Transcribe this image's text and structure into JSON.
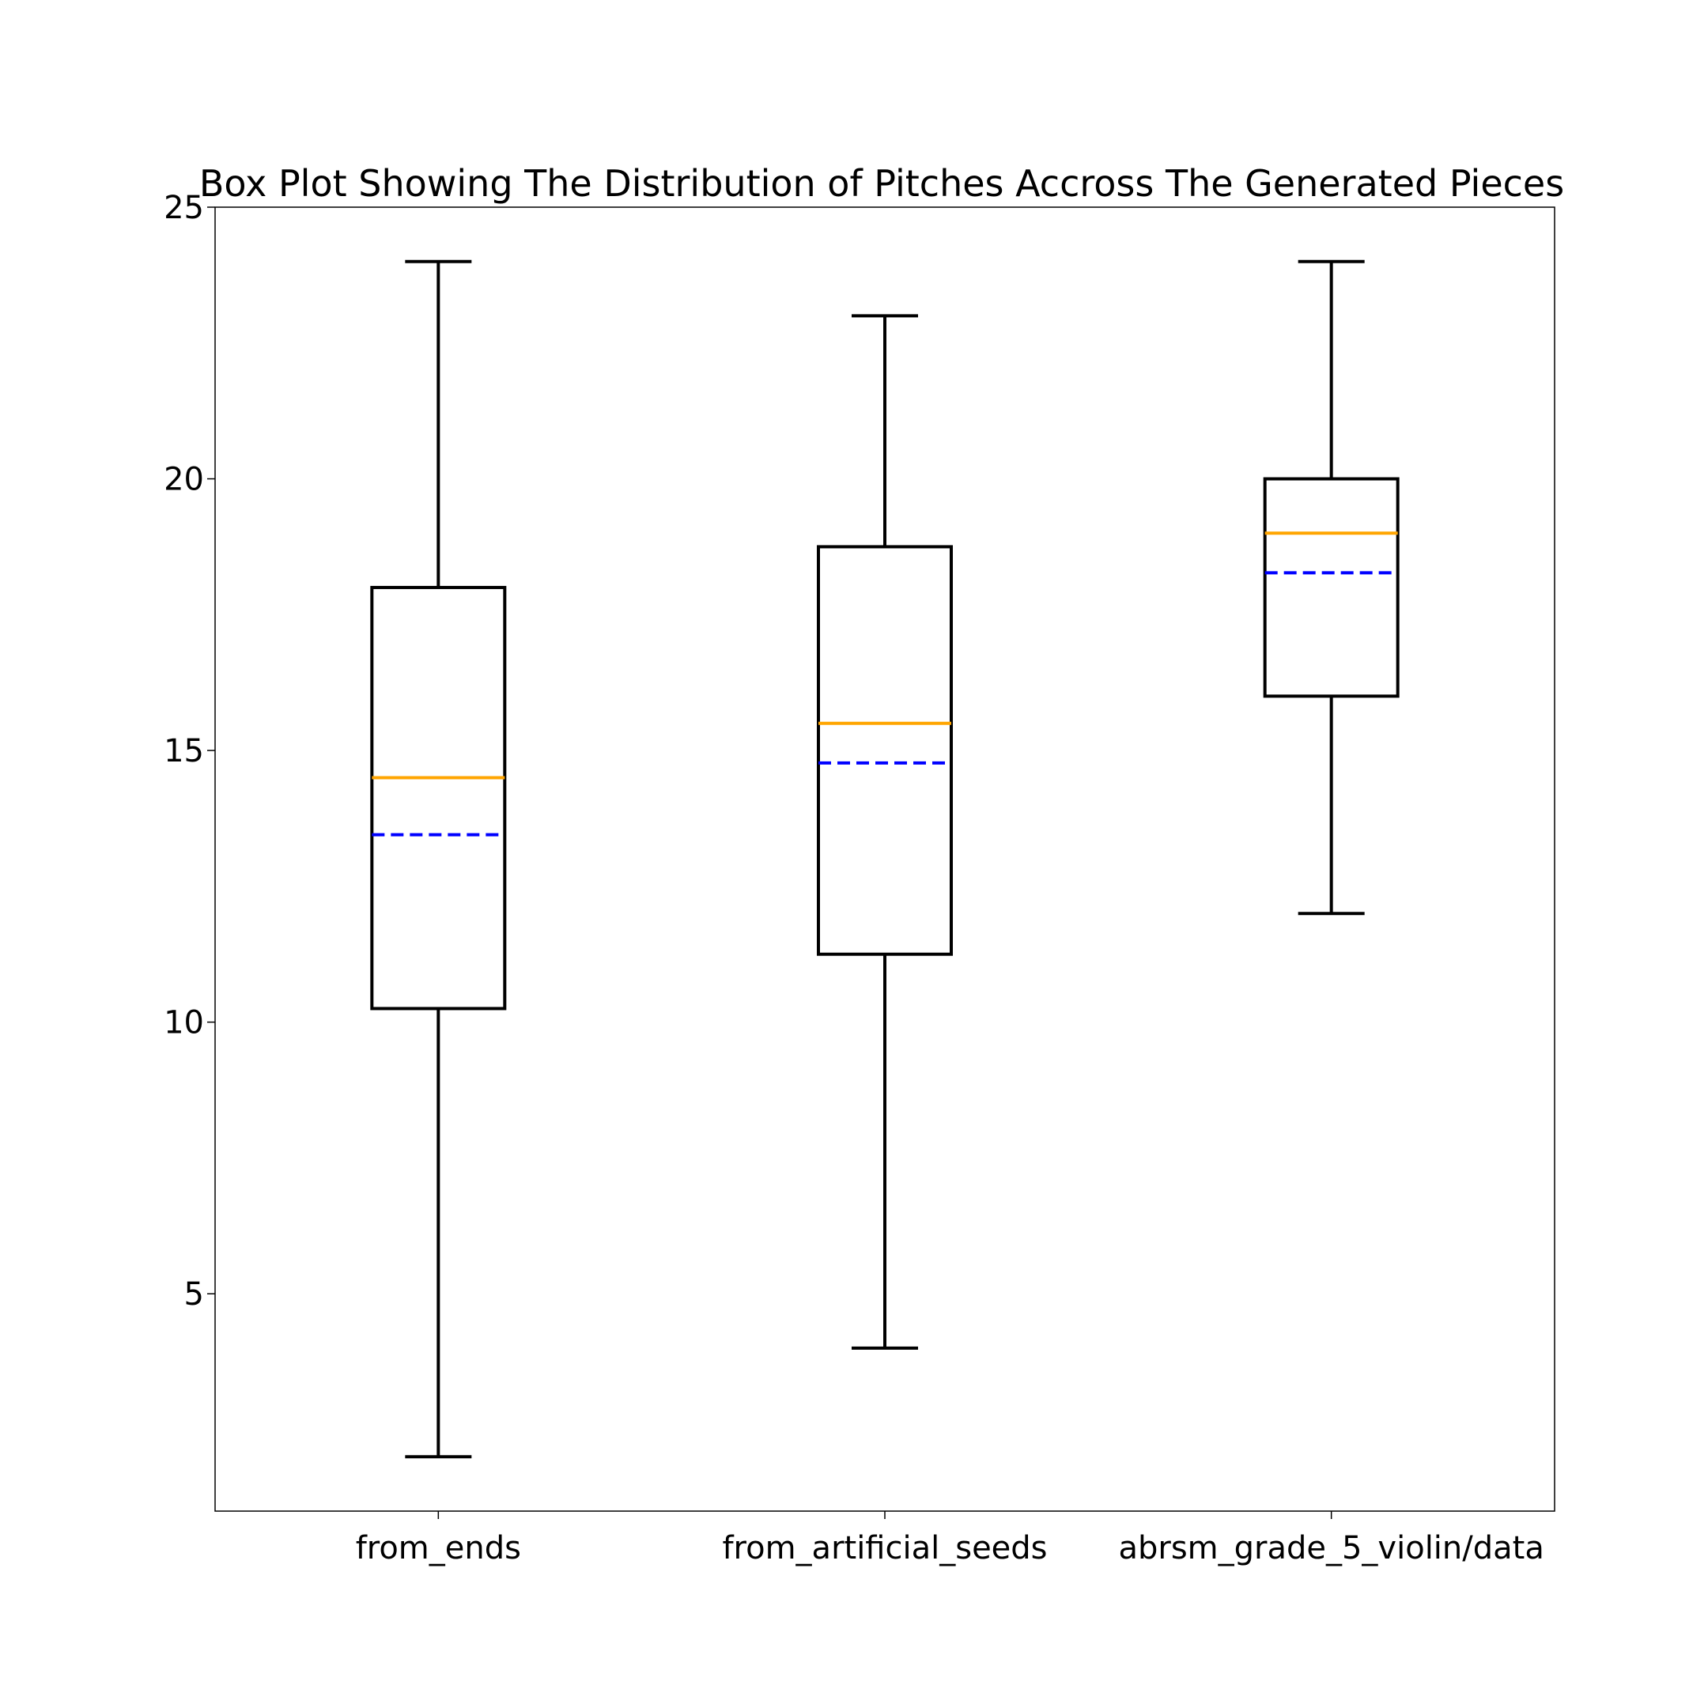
{
  "chart_data": {
    "type": "box",
    "title": "Box Plot Showing The Distribution of Pitches Accross The Generated Pieces",
    "xlabel": "",
    "ylabel": "",
    "ylim": [
      1,
      25
    ],
    "yticks": [
      5,
      10,
      15,
      20,
      25
    ],
    "grid": false,
    "categories": [
      "from_ends",
      "from_artificial_seeds",
      "abrsm_grade_5_violin/data"
    ],
    "boxes": [
      {
        "category": "from_ends",
        "whisker_low": 2,
        "q1": 10.25,
        "median": 14.5,
        "mean": 13.45,
        "q3": 18,
        "whisker_high": 24
      },
      {
        "category": "from_artificial_seeds",
        "whisker_low": 4,
        "q1": 11.25,
        "median": 15.5,
        "mean": 14.77,
        "q3": 18.75,
        "whisker_high": 23
      },
      {
        "category": "abrsm_grade_5_violin/data",
        "whisker_low": 12,
        "q1": 16,
        "median": 19,
        "mean": 18.27,
        "q3": 20,
        "whisker_high": 24
      }
    ],
    "colors": {
      "box": "#000000",
      "median": "#FFA500",
      "mean": "#0000FF",
      "axes": "#000000"
    }
  }
}
